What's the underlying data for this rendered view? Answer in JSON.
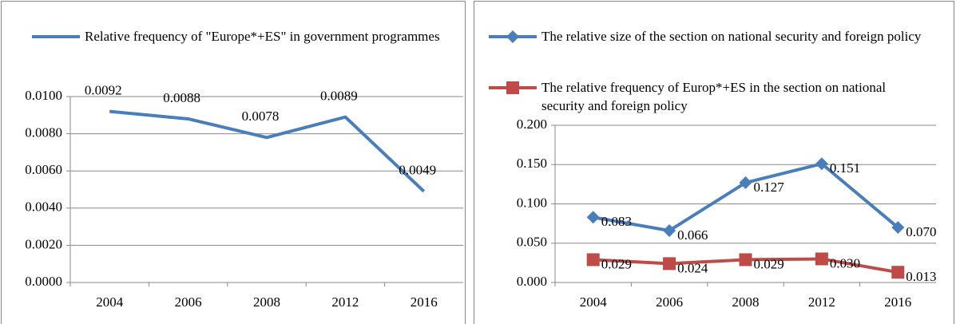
{
  "chart_data": [
    {
      "type": "line",
      "categories": [
        "2004",
        "2006",
        "2008",
        "2012",
        "2016"
      ],
      "series": [
        {
          "name": "Relative frequency of \"Europe*+ES\" in government programmes",
          "color": "#4a7ebb",
          "marker": "none",
          "values": [
            0.0092,
            0.0088,
            0.0078,
            0.0089,
            0.0049
          ]
        }
      ],
      "ylim": [
        0,
        0.01
      ],
      "yticks": [
        {
          "value": 0,
          "label": "0.0000"
        },
        {
          "value": 0.002,
          "label": "0.0020"
        },
        {
          "value": 0.004,
          "label": "0.0040"
        },
        {
          "value": 0.006,
          "label": "0.0060"
        },
        {
          "value": 0.008,
          "label": "0.0080"
        },
        {
          "value": 0.01,
          "label": "0.0100"
        }
      ],
      "grid": true
    },
    {
      "type": "line",
      "categories": [
        "2004",
        "2006",
        "2008",
        "2012",
        "2016"
      ],
      "series": [
        {
          "name": "The relative size of the section on national security and foreign policy",
          "color": "#4a7ebb",
          "marker": "diamond",
          "values": [
            0.083,
            0.066,
            0.127,
            0.151,
            0.07
          ],
          "value_labels": [
            "0.083",
            "0.066",
            "0.127",
            "0.151",
            "0.070"
          ]
        },
        {
          "name": "The relative frequency of Europ*+ES in the section on national security and foreign policy",
          "color": "#be4b48",
          "marker": "square",
          "values": [
            0.029,
            0.024,
            0.029,
            0.03,
            0.013
          ],
          "value_labels": [
            "0.029",
            "0.024",
            "0.029",
            "0.030",
            "0.013"
          ]
        }
      ],
      "ylim": [
        0,
        0.2
      ],
      "yticks": [
        {
          "value": 0,
          "label": "0.000"
        },
        {
          "value": 0.05,
          "label": "0.050"
        },
        {
          "value": 0.1,
          "label": "0.100"
        },
        {
          "value": 0.15,
          "label": "0.150"
        },
        {
          "value": 0.2,
          "label": "0.200"
        }
      ],
      "grid": true
    }
  ]
}
